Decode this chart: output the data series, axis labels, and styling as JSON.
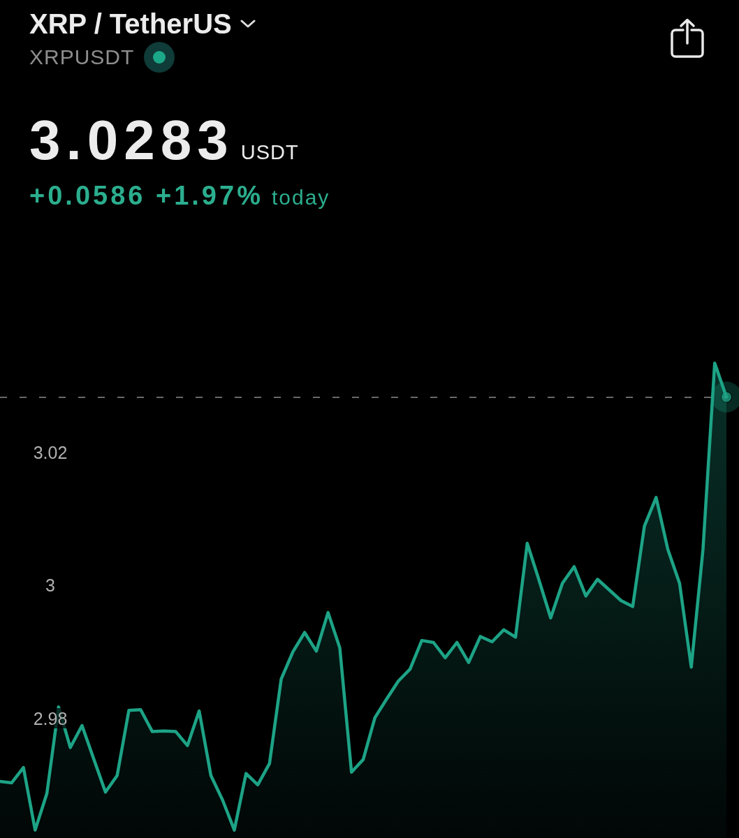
{
  "chart_data": {
    "type": "area",
    "title": "XRP / TetherUS",
    "subtitle": "XRPUSDT",
    "annotations": [
      "3.0283",
      "USDT",
      "+0.0586 +1.97%",
      "today"
    ],
    "categories": [
      null,
      null,
      null,
      null,
      null,
      null,
      null,
      null,
      null,
      null,
      null,
      null,
      null,
      null,
      null,
      null,
      null,
      null,
      null,
      null,
      null,
      null,
      null,
      null,
      null,
      null,
      null,
      null,
      null,
      null,
      null,
      null,
      null,
      null,
      null,
      null,
      null,
      null,
      null,
      null,
      null,
      null,
      null,
      null,
      null,
      null,
      null,
      null,
      null,
      null,
      null,
      null,
      null,
      null,
      null,
      null,
      null,
      null,
      null,
      null,
      null,
      null,
      null
    ],
    "series": [
      {
        "type": "area",
        "color": "#1da386",
        "values": [
          2.9705,
          2.9703,
          2.9726,
          2.9632,
          2.9687,
          2.9817,
          2.9756,
          2.9789,
          2.9739,
          2.9689,
          2.9714,
          2.9812,
          2.9813,
          2.978,
          2.9781,
          2.978,
          2.9759,
          2.9811,
          2.9714,
          2.9677,
          2.9632,
          2.9717,
          2.97,
          2.9732,
          2.9859,
          2.99,
          2.9929,
          2.9901,
          2.9959,
          2.9906,
          2.9719,
          2.9738,
          2.9801,
          2.9829,
          2.9856,
          2.9874,
          2.9917,
          2.9914,
          2.9891,
          2.9914,
          2.9884,
          2.9923,
          2.9915,
          2.9933,
          2.9922,
          3.0063,
          3.0008,
          2.9951,
          3.0003,
          3.0028,
          2.9984,
          3.0009,
          2.9993,
          2.9977,
          2.9968,
          3.0089,
          3.0132,
          3.0054,
          3.0003,
          2.9877,
          3.0054,
          3.0334,
          3.0283
        ]
      },
      {
        "type": "scatter",
        "color": "#1da386",
        "marker": "circle",
        "values": [
          null,
          null,
          null,
          null,
          null,
          null,
          null,
          null,
          null,
          null,
          null,
          null,
          null,
          null,
          null,
          null,
          null,
          null,
          null,
          null,
          null,
          null,
          null,
          null,
          null,
          null,
          null,
          null,
          null,
          null,
          null,
          null,
          null,
          null,
          null,
          null,
          null,
          null,
          null,
          null,
          null,
          null,
          null,
          null,
          null,
          null,
          null,
          null,
          null,
          null,
          null,
          null,
          null,
          null,
          null,
          null,
          null,
          null,
          null,
          null,
          null,
          null,
          3.0283
        ]
      }
    ],
    "ylim": [
      2.962,
      3.088
    ],
    "yticks": [
      2.98,
      3,
      3.02
    ],
    "tick_labels": "y",
    "ref_lines": [
      {
        "axis": "y",
        "value": 3.0283,
        "color": "#8c8c8c",
        "line_style": "dashed"
      }
    ]
  }
}
